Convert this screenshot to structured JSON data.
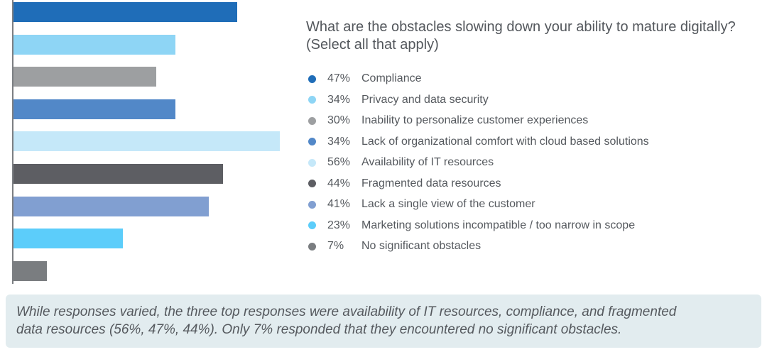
{
  "chart_data": {
    "type": "bar",
    "orientation": "horizontal",
    "title": "What are the obstacles slowing down your ability to mature digitally? (Select all that apply)",
    "unit": "%",
    "xlim": [
      0,
      56
    ],
    "grid": false,
    "legend_position": "right",
    "categories": [
      "Compliance",
      "Privacy and data security",
      "Inability to personalize customer experiences",
      "Lack of organizational comfort with cloud based solutions",
      "Availability of IT resources",
      "Fragmented data resources",
      "Lack a single view of the customer",
      "Marketing solutions incompatible / too narrow in scope",
      "No significant obstacles"
    ],
    "values": [
      47,
      34,
      30,
      34,
      56,
      44,
      41,
      23,
      7
    ],
    "value_labels": [
      "47%",
      "34%",
      "30%",
      "34%",
      "56%",
      "44%",
      "41%",
      "23%",
      "7%"
    ],
    "colors": [
      "#1f6db8",
      "#8ed5f5",
      "#9d9fa1",
      "#5288c8",
      "#c5e8f9",
      "#5d5e63",
      "#819fd1",
      "#5ccdfa",
      "#7a7d80"
    ]
  },
  "summary": {
    "text_line1": "While responses varied, the three top responses were availability of IT resources, compliance, and fragmented",
    "text_line2": "data resources (56%, 47%, 44%). Only 7% responded that they encountered no significant obstacles."
  }
}
